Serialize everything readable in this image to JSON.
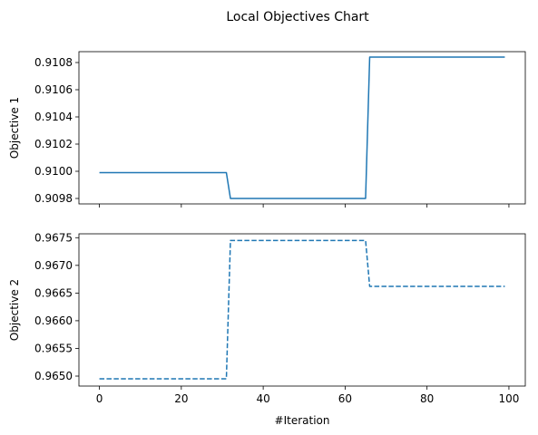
{
  "title": "Local Objectives Chart",
  "chart_data": [
    {
      "type": "line",
      "xlabel": "",
      "ylabel": "Objective 1",
      "xlim": [
        -5,
        104
      ],
      "ylim": [
        0.90976,
        0.91088
      ],
      "xticks": [
        0,
        20,
        40,
        60,
        80,
        100
      ],
      "yticks": [
        0.9098,
        0.91,
        0.9102,
        0.9104,
        0.9106,
        0.9108
      ],
      "ytick_labels": [
        "0.9098",
        "0.9100",
        "0.9102",
        "0.9104",
        "0.9106",
        "0.9108"
      ],
      "show_xtick_labels": false,
      "grid": false,
      "line_color": "#1f77b4",
      "line_style": "solid",
      "x": [
        0,
        31,
        32,
        65,
        66,
        99
      ],
      "y": [
        0.90999,
        0.90999,
        0.9098,
        0.9098,
        0.91084,
        0.91084
      ]
    },
    {
      "type": "line",
      "xlabel": "#Iteration",
      "ylabel": "Objective 2",
      "xlim": [
        -5,
        104
      ],
      "ylim": [
        0.96482,
        0.96757
      ],
      "xticks": [
        0,
        20,
        40,
        60,
        80,
        100
      ],
      "xtick_labels": [
        "0",
        "20",
        "40",
        "60",
        "80",
        "100"
      ],
      "yticks": [
        0.965,
        0.9655,
        0.966,
        0.9665,
        0.967,
        0.9675
      ],
      "ytick_labels": [
        "0.9650",
        "0.9655",
        "0.9660",
        "0.9665",
        "0.9670",
        "0.9675"
      ],
      "show_xtick_labels": true,
      "grid": false,
      "line_color": "#1f77b4",
      "line_style": "dashed",
      "x": [
        0,
        31,
        32,
        65,
        66,
        99
      ],
      "y": [
        0.96495,
        0.96495,
        0.96745,
        0.96745,
        0.96662,
        0.96662
      ]
    }
  ]
}
